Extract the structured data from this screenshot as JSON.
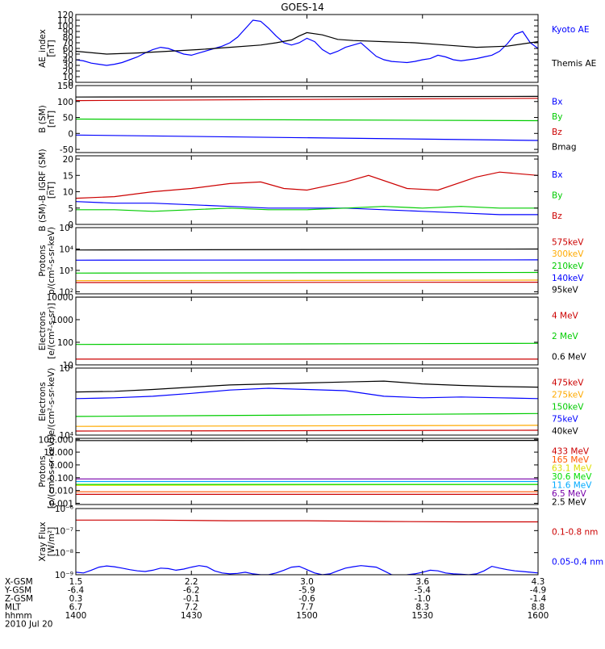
{
  "title": "GOES-14",
  "chart_data": [
    {
      "type": "line",
      "id": "ae",
      "ylabel": [
        "AE_index",
        "[nT]"
      ],
      "scale": "linear",
      "ylim": [
        0,
        120
      ],
      "yticks": [
        "0",
        "10",
        "20",
        "30",
        "40",
        "50",
        "60",
        "70",
        "80",
        "90",
        "100",
        "110",
        "120"
      ],
      "series": [
        {
          "name": "Kyoto AE",
          "color": "#0000ff",
          "label_pos": "top",
          "x": [
            0,
            1,
            2,
            3,
            4,
            5,
            6,
            7,
            8,
            9,
            10,
            11,
            12,
            13,
            14,
            15,
            16,
            17,
            18,
            19,
            20,
            21,
            22,
            23,
            24,
            25,
            26,
            27,
            28,
            29,
            30,
            31,
            32,
            33,
            34,
            35,
            36,
            37,
            38,
            39,
            40,
            41,
            42,
            43,
            44,
            45,
            46,
            47,
            48,
            49,
            50,
            51,
            52,
            53,
            54,
            55,
            56,
            57,
            58,
            59,
            60
          ],
          "y": [
            40,
            38,
            34,
            32,
            30,
            32,
            35,
            40,
            45,
            52,
            58,
            62,
            60,
            55,
            50,
            48,
            52,
            56,
            60,
            64,
            70,
            80,
            95,
            110,
            108,
            96,
            82,
            70,
            66,
            70,
            78,
            72,
            58,
            50,
            55,
            62,
            66,
            70,
            58,
            46,
            40,
            37,
            36,
            35,
            37,
            40,
            42,
            48,
            45,
            40,
            38,
            40,
            42,
            45,
            48,
            55,
            68,
            85,
            90,
            70,
            60
          ]
        },
        {
          "name": "Themis AE",
          "color": "#000000",
          "label_pos": "bottom",
          "x": [
            0,
            4,
            8,
            12,
            16,
            20,
            24,
            26,
            28,
            29,
            30,
            32,
            34,
            36,
            40,
            44,
            48,
            52,
            56,
            58,
            60
          ],
          "y": [
            55,
            50,
            52,
            55,
            58,
            62,
            66,
            70,
            75,
            82,
            88,
            84,
            76,
            74,
            72,
            70,
            66,
            62,
            64,
            68,
            72
          ]
        }
      ]
    },
    {
      "type": "line",
      "id": "b_sm",
      "ylabel": [
        "B (SM)",
        "[nT]"
      ],
      "scale": "linear",
      "ylim": [
        -60,
        150
      ],
      "yticks": [
        "-50",
        "0",
        "50",
        "100",
        "150"
      ],
      "series": [
        {
          "name": "Bx",
          "color": "#0000ff",
          "x": [
            0,
            60
          ],
          "y": [
            -5,
            -22
          ]
        },
        {
          "name": "By",
          "color": "#00cc00",
          "x": [
            0,
            60
          ],
          "y": [
            45,
            40
          ]
        },
        {
          "name": "Bz",
          "color": "#cc0000",
          "x": [
            0,
            60
          ],
          "y": [
            103,
            110
          ]
        },
        {
          "name": "Bmag",
          "color": "#000000",
          "x": [
            0,
            60
          ],
          "y": [
            114,
            116
          ]
        }
      ]
    },
    {
      "type": "line",
      "id": "b_igrf",
      "ylabel": [
        "B (SM)-B_IGRF (SM)",
        "[nT]"
      ],
      "scale": "linear",
      "ylim": [
        0,
        21
      ],
      "yticks": [
        "0",
        "5",
        "10",
        "15",
        "20"
      ],
      "series": [
        {
          "name": "Bx",
          "color": "#0000ff",
          "x": [
            0,
            5,
            10,
            15,
            20,
            25,
            30,
            35,
            40,
            45,
            50,
            55,
            60
          ],
          "y": [
            7,
            6.5,
            6.5,
            6,
            5.5,
            5,
            5,
            5,
            4.5,
            4,
            3.5,
            3,
            3
          ]
        },
        {
          "name": "By",
          "color": "#00cc00",
          "x": [
            0,
            5,
            10,
            15,
            20,
            25,
            30,
            35,
            40,
            45,
            50,
            55,
            60
          ],
          "y": [
            4.5,
            4.5,
            4,
            4.5,
            5,
            4.5,
            4.5,
            5,
            5.5,
            5,
            5.5,
            5,
            5
          ]
        },
        {
          "name": "Bz",
          "color": "#cc0000",
          "x": [
            0,
            5,
            10,
            15,
            20,
            24,
            27,
            30,
            35,
            38,
            43,
            47,
            52,
            55,
            60
          ],
          "y": [
            8,
            8.5,
            10,
            11,
            12.5,
            13,
            11,
            10.5,
            13,
            15,
            11,
            10.5,
            14.5,
            16,
            15
          ]
        }
      ]
    },
    {
      "type": "line",
      "id": "protons_low",
      "ylabel": [
        "Protons",
        "p/(cm²-s-sr-keV)"
      ],
      "scale": "log",
      "ylim": [
        80,
        100000
      ],
      "yticks": [
        "10²",
        "10³",
        "10⁴",
        "10⁵"
      ],
      "series": [
        {
          "name": "575keV",
          "color": "#cc0000",
          "x": [
            0,
            60
          ],
          "y": [
            270,
            280
          ]
        },
        {
          "name": "300keV",
          "color": "#ffaa00",
          "x": [
            0,
            60
          ],
          "y": [
            330,
            350
          ]
        },
        {
          "name": "210keV",
          "color": "#00cc00",
          "x": [
            0,
            60
          ],
          "y": [
            750,
            800
          ]
        },
        {
          "name": "140keV",
          "color": "#0000ff",
          "x": [
            0,
            60
          ],
          "y": [
            3000,
            3100
          ]
        },
        {
          "name": "95keV",
          "color": "#000000",
          "x": [
            0,
            60
          ],
          "y": [
            9000,
            10000
          ]
        }
      ]
    },
    {
      "type": "line",
      "id": "electrons_mev",
      "ylabel": [
        "Electrons",
        "[e/(cm²-s-sr)]"
      ],
      "scale": "log",
      "ylim": [
        10,
        10000
      ],
      "yticks": [
        "10",
        "100",
        "1000",
        "10000"
      ],
      "series": [
        {
          "name": "4 MeV",
          "color": "#cc0000",
          "x": [
            0,
            60
          ],
          "y": [
            18,
            18
          ]
        },
        {
          "name": "2 MeV",
          "color": "#00cc00",
          "x": [
            0,
            60
          ],
          "y": [
            80,
            90
          ]
        },
        {
          "name": "0.6 MeV",
          "color": "#000000",
          "x": [
            0,
            60
          ],
          "y": [
            10000,
            10000
          ]
        }
      ]
    },
    {
      "type": "line",
      "id": "electrons_kev",
      "ylabel": [
        "Electrons",
        "e/(cm²-s-sr-keV)"
      ],
      "scale": "log",
      "ylim": [
        10000,
        100000
      ],
      "yticks": [
        "10⁴",
        "10⁵"
      ],
      "series": [
        {
          "name": "475keV",
          "color": "#cc0000",
          "x": [
            0,
            60
          ],
          "y": [
            11500,
            11800
          ]
        },
        {
          "name": "275keV",
          "color": "#ffaa00",
          "x": [
            0,
            60
          ],
          "y": [
            13500,
            14000
          ]
        },
        {
          "name": "150keV",
          "color": "#00cc00",
          "x": [
            0,
            60
          ],
          "y": [
            19000,
            21000
          ]
        },
        {
          "name": "75keV",
          "color": "#0000ff",
          "x": [
            0,
            5,
            10,
            15,
            20,
            25,
            30,
            35,
            40,
            45,
            50,
            55,
            60
          ],
          "y": [
            35000,
            36000,
            38000,
            42000,
            47000,
            50000,
            48000,
            46000,
            38000,
            36000,
            37000,
            36000,
            35000
          ]
        },
        {
          "name": "40keV",
          "color": "#000000",
          "x": [
            0,
            5,
            10,
            15,
            20,
            25,
            30,
            35,
            40,
            45,
            50,
            55,
            60
          ],
          "y": [
            44000,
            45000,
            48000,
            52000,
            56000,
            58000,
            60000,
            62000,
            64000,
            58000,
            55000,
            53000,
            52000
          ]
        }
      ]
    },
    {
      "type": "line",
      "id": "protons_high",
      "ylabel": [
        "Protons",
        "[p/(cm²-s-sr-keV)]"
      ],
      "scale": "log",
      "ylim": [
        0.0008,
        120
      ],
      "yticks": [
        "0.001",
        "0.010",
        "0.100",
        "1.000",
        "10.000",
        "100.000"
      ],
      "series": [
        {
          "name": "433 MeV",
          "color": "#cc0000",
          "x": [
            0,
            60
          ],
          "y": [
            0.005,
            0.005
          ]
        },
        {
          "name": "165 MeV",
          "color": "#ff5500",
          "x": [
            0,
            60
          ],
          "y": [
            0.008,
            0.008
          ]
        },
        {
          "name": "63.1 MeV",
          "color": "#dddd00",
          "x": [
            0,
            60
          ],
          "y": [
            0.025,
            0.03
          ]
        },
        {
          "name": "30.6 MeV",
          "color": "#00dd00",
          "x": [
            0,
            60
          ],
          "y": [
            0.03,
            0.03
          ]
        },
        {
          "name": "11.6 MeV",
          "color": "#00aaff",
          "x": [
            0,
            60
          ],
          "y": [
            0.05,
            0.05
          ]
        },
        {
          "name": "6.5 MeV",
          "color": "#7700aa",
          "x": [
            0,
            60
          ],
          "y": [
            0.08,
            0.08
          ]
        },
        {
          "name": "2.5 MeV",
          "color": "#000000",
          "x": [
            0,
            60
          ],
          "y": [
            80,
            82
          ]
        }
      ]
    },
    {
      "type": "line",
      "id": "xray",
      "ylabel": [
        "Xray Flux",
        "[W/m²]"
      ],
      "scale": "log",
      "ylim": [
        1e-09,
        1e-06
      ],
      "yticks": [
        "10⁻⁹",
        "10⁻⁸",
        "10⁻⁷",
        "10⁻⁶"
      ],
      "series": [
        {
          "name": "0.1-0.8 nm",
          "color": "#cc0000",
          "x": [
            0,
            10,
            20,
            30,
            40,
            50,
            60
          ],
          "y": [
            3e-07,
            3e-07,
            2.8e-07,
            2.8e-07,
            2.6e-07,
            2.5e-07,
            2.5e-07
          ]
        },
        {
          "name": "0.05-0.4 nm",
          "color": "#0000ff",
          "x": [
            0,
            1,
            2,
            3,
            4,
            5,
            6,
            7,
            8,
            9,
            10,
            11,
            12,
            13,
            14,
            15,
            16,
            17,
            18,
            19,
            20,
            21,
            22,
            23,
            24,
            25,
            26,
            27,
            28,
            29,
            30,
            31,
            32,
            33,
            34,
            35,
            36,
            37,
            38,
            39,
            40,
            41,
            42,
            43,
            44,
            45,
            46,
            47,
            48,
            49,
            50,
            51,
            52,
            53,
            54,
            55,
            56,
            57,
            58,
            59,
            60
          ],
          "y": [
            1.3e-09,
            1.2e-09,
            1.6e-09,
            2.2e-09,
            2.5e-09,
            2.3e-09,
            2e-09,
            1.7e-09,
            1.5e-09,
            1.4e-09,
            1.6e-09,
            2e-09,
            1.9e-09,
            1.6e-09,
            1.8e-09,
            2.2e-09,
            2.6e-09,
            2.3e-09,
            1.5e-09,
            1.2e-09,
            1.1e-09,
            1.15e-09,
            1.3e-09,
            1.1e-09,
            1e-09,
            1e-09,
            1.2e-09,
            1.6e-09,
            2.2e-09,
            2.4e-09,
            1.7e-09,
            1.2e-09,
            1e-09,
            1.1e-09,
            1.5e-09,
            2e-09,
            2.3e-09,
            2.6e-09,
            2.4e-09,
            2.2e-09,
            1.5e-09,
            1e-09,
            9.5e-10,
            1e-09,
            1.1e-09,
            1.3e-09,
            1.6e-09,
            1.5e-09,
            1.2e-09,
            1.1e-09,
            1.05e-09,
            1e-09,
            1.1e-09,
            1.5e-09,
            2.4e-09,
            2e-09,
            1.7e-09,
            1.5e-09,
            1.4e-09,
            1.3e-09,
            1.2e-09
          ]
        }
      ]
    }
  ],
  "x_axis": {
    "xlim": [
      0,
      60
    ],
    "tick_values": [
      0,
      15,
      30,
      45,
      60
    ],
    "rows": [
      {
        "label": "X-GSM",
        "values": [
          "1.5",
          "2.2",
          "3.0",
          "3.6",
          "4.3"
        ]
      },
      {
        "label": "Y-GSM",
        "values": [
          "-6.4",
          "-6.2",
          "-5.9",
          "-5.4",
          "-4.9"
        ]
      },
      {
        "label": "Z-GSM",
        "values": [
          "0.3",
          "-0.1",
          "-0.6",
          "-1.0",
          "-1.4"
        ]
      },
      {
        "label": "MLT",
        "values": [
          "6.7",
          "7.2",
          "7.7",
          "8.3",
          "8.8"
        ]
      },
      {
        "label": "hhmm",
        "values": [
          "1400",
          "1430",
          "1500",
          "1530",
          "1600"
        ]
      }
    ],
    "date": "2010 Jul 20"
  }
}
